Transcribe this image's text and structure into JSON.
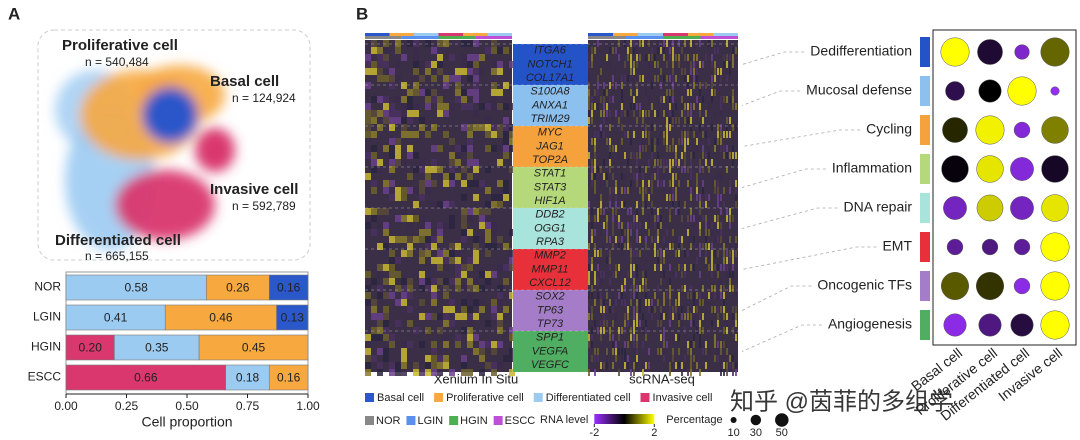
{
  "figure": {
    "panel_a_label": "A",
    "panel_b_label": "B",
    "umap_counts": [
      "n = 592,789",
      "n = 665,155",
      "n = 540,484",
      "n = 124,924"
    ],
    "heatmap_left_label": "Xenium In Situ",
    "heatmap_right_label": "scRNA-seq",
    "gene_groups": [
      {
        "color": "#2453c8",
        "genes": [
          "ITGA6",
          "NOTCH1",
          "COL17A1"
        ]
      },
      {
        "color": "#8cc0ef",
        "genes": [
          "S100A8",
          "ANXA1",
          "TRIM29"
        ]
      },
      {
        "color": "#f5a23c",
        "genes": [
          "MYC",
          "JAG1",
          "TOP2A"
        ]
      },
      {
        "color": "#b5d97a",
        "genes": [
          "STAT1",
          "STAT3",
          "HIF1A"
        ]
      },
      {
        "color": "#a8e3dc",
        "genes": [
          "DDB2",
          "OGG1",
          "RPA3"
        ]
      },
      {
        "color": "#e8303a",
        "genes": [
          "MMP2",
          "MMP11",
          "CXCL12"
        ]
      },
      {
        "color": "#a57cc8",
        "genes": [
          "SOX2",
          "TP63",
          "TP73"
        ]
      },
      {
        "color": "#4fae62",
        "genes": [
          "SPP1",
          "VEGFA",
          "VEGFC"
        ]
      }
    ],
    "stage_legend": [
      {
        "name": "NOR",
        "color": "#888888"
      },
      {
        "name": "LGIN",
        "color": "#5b8ff0"
      },
      {
        "name": "HGIN",
        "color": "#4caf50"
      },
      {
        "name": "ESCC",
        "color": "#c04fd8"
      }
    ],
    "watermark": "知乎 @茵菲的多组学"
  },
  "chart_data": [
    {
      "type": "stacked_barh",
      "categories": [
        "NOR",
        "LGIN",
        "HGIN",
        "ESCC"
      ],
      "series": [
        {
          "name": "Invasive cell",
          "color": "#d9376e",
          "values": [
            null,
            null,
            0.2,
            0.66
          ],
          "value_labels": [
            null,
            null,
            "0.20",
            "0.66"
          ]
        },
        {
          "name": "Differentiated cell",
          "color": "#9ccbf2",
          "values": [
            0.58,
            0.41,
            0.35,
            0.18
          ]
        },
        {
          "name": "Proliferative cell",
          "color": "#f7a940",
          "values": [
            0.26,
            0.46,
            0.45,
            0.16
          ]
        },
        {
          "name": "Basal cell",
          "color": "#2a57c9",
          "values": [
            0.16,
            0.13,
            null,
            null
          ]
        }
      ],
      "xlim": [
        0,
        1
      ],
      "xticks": [
        {
          "value": 0,
          "label": "0.00"
        },
        {
          "value": 0.25,
          "label": "0.25"
        },
        {
          "value": 0.5,
          "label": "0.50"
        },
        {
          "value": 0.75,
          "label": "0.75"
        },
        {
          "value": 1,
          "label": "1.00"
        }
      ],
      "xlabel": "Cell proportion"
    },
    {
      "type": "dot",
      "categories": [
        "Basal cell",
        "Proliferative cell",
        "Differentiated cell",
        "Invasive cell"
      ],
      "y_categories": [
        "Dedifferentiation",
        "Mucosal defense",
        "Cycling",
        "Inflammation",
        "DNA repair",
        "EMT",
        "Oncogenic TFs",
        "Angiogenesis"
      ],
      "row_colors": [
        "#2453c8",
        "#8cc0ef",
        "#f5a23c",
        "#b5d97a",
        "#a8e3dc",
        "#e8303a",
        "#a57cc8",
        "#4fae62"
      ],
      "values": [
        [
          2,
          -0.4,
          -1.6,
          0.8
        ],
        [
          -0.6,
          0,
          2,
          -1.9
        ],
        [
          0.3,
          1.9,
          -1.7,
          1.0
        ],
        [
          -0.1,
          1.8,
          -1.7,
          -0.3
        ],
        [
          -1.5,
          1.6,
          -1.5,
          1.8
        ],
        [
          -1.2,
          -1,
          -1.2,
          2
        ],
        [
          0.7,
          0.4,
          -1.8,
          2
        ],
        [
          -1.8,
          -1,
          -0.5,
          2
        ]
      ],
      "sizes": [
        [
          45,
          35,
          12,
          45
        ],
        [
          20,
          28,
          45,
          4
        ],
        [
          35,
          45,
          14,
          40
        ],
        [
          40,
          40,
          30,
          40
        ],
        [
          30,
          38,
          30,
          40
        ],
        [
          14,
          14,
          14,
          45
        ],
        [
          42,
          42,
          14,
          45
        ],
        [
          28,
          28,
          28,
          45
        ]
      ],
      "colorbar": {
        "label": "RNA level",
        "lim": [
          -2,
          2
        ],
        "ticks": [
          -2,
          2
        ],
        "colors": [
          "#9b30ff",
          "#000000",
          "#ffff00"
        ]
      },
      "size_legend": {
        "label": "Percentage",
        "values": [
          10,
          30,
          50
        ]
      }
    }
  ]
}
